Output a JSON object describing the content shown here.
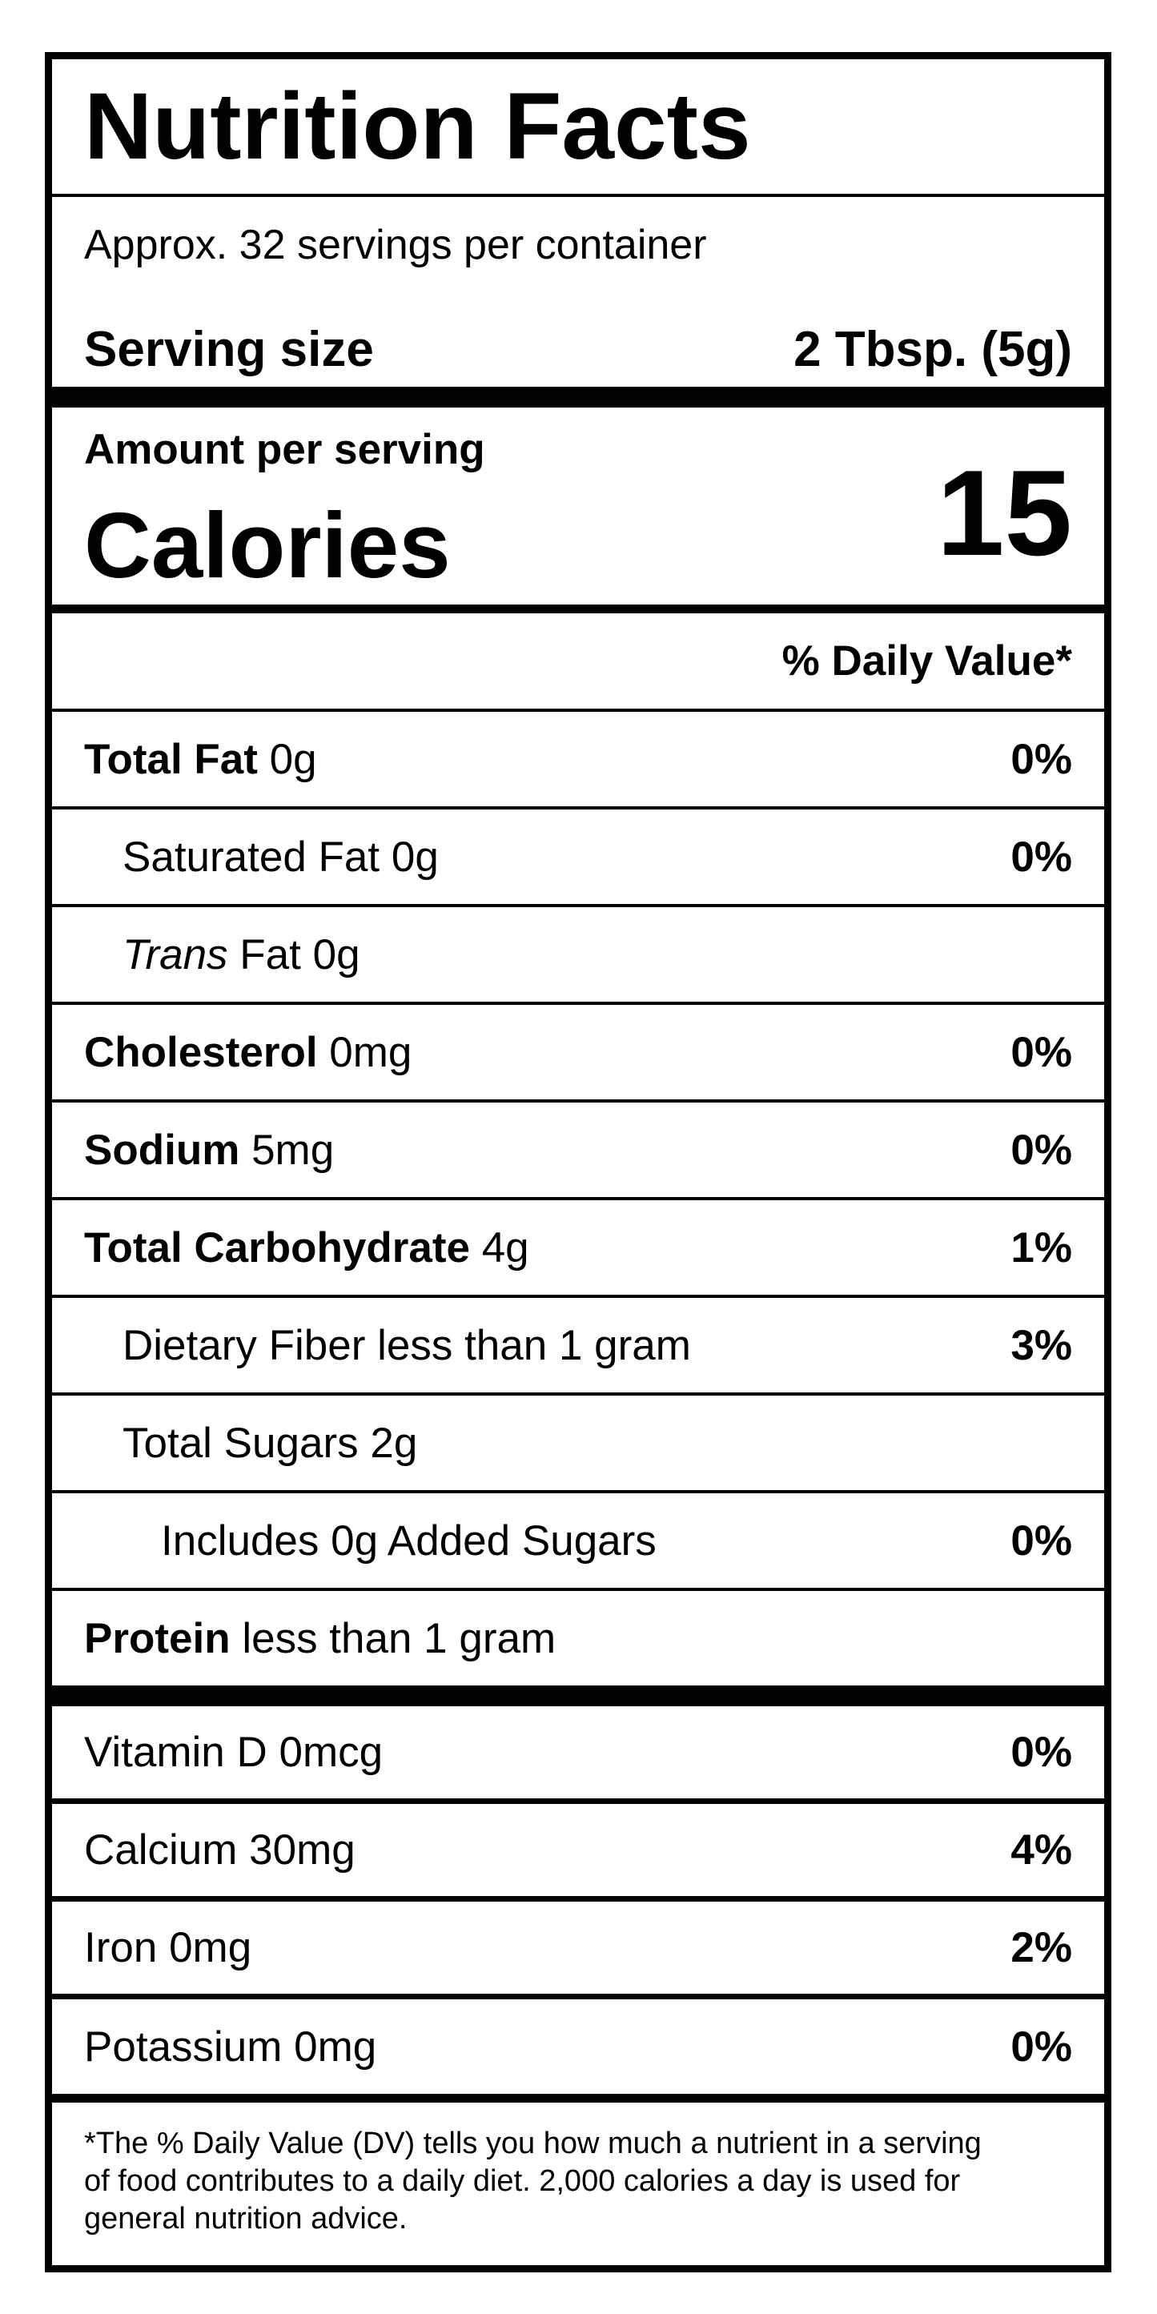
{
  "header": {
    "title": "Nutrition Facts",
    "servings": "Approx. 32 servings per container",
    "serving_size_label": "Serving size",
    "serving_size": "2 Tbsp. (5g)",
    "amount_per_serving": "Amount per serving",
    "calories_label": "Calories",
    "calories": "15",
    "daily_value_header": "% Daily Value*"
  },
  "nutrients": [
    {
      "name": "Total Fat",
      "amount": "0g",
      "dv": "0%"
    },
    {
      "name": "Saturated Fat",
      "amount": "0g",
      "dv": "0%"
    },
    {
      "italic": "Trans",
      "name": "Fat",
      "amount": "0g"
    },
    {
      "name": "Cholesterol",
      "amount": "0mg",
      "dv": "0%"
    },
    {
      "name": "Sodium",
      "amount": "5mg",
      "dv": "0%"
    },
    {
      "name": "Total Carbohydrate",
      "amount": "4g",
      "dv": "1%"
    },
    {
      "name": "Dietary Fiber",
      "amount": "less than 1 gram",
      "dv": "3%"
    },
    {
      "name": "Total Sugars",
      "amount": "2g"
    },
    {
      "name": "Includes 0g Added Sugars",
      "dv": "0%"
    },
    {
      "name": "Protein",
      "amount": "less than 1 gram"
    }
  ],
  "vitamins": [
    {
      "name": "Vitamin D",
      "amount": "0mcg",
      "dv": "0%"
    },
    {
      "name": "Calcium",
      "amount": "30mg",
      "dv": "4%"
    },
    {
      "name": "Iron",
      "amount": "0mg",
      "dv": "2%"
    },
    {
      "name": "Potassium",
      "amount": "0mg",
      "dv": "0%"
    }
  ],
  "footnote": "*The % Daily Value (DV) tells you how much a nutrient in a serving of food contributes to a daily diet. 2,000 calories a day is used for general nutrition advice."
}
